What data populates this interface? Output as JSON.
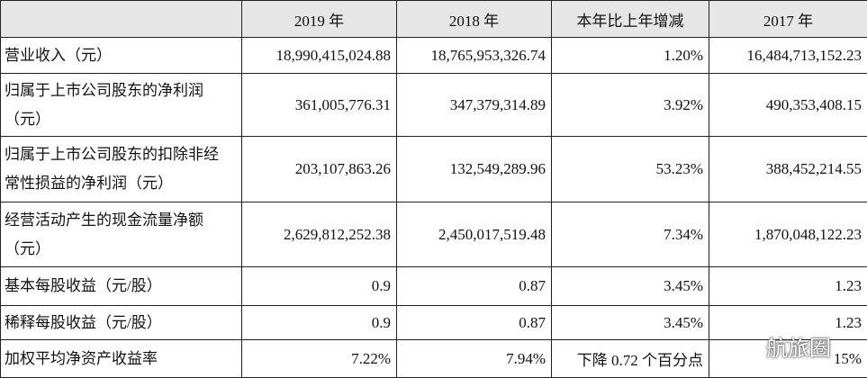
{
  "table": {
    "header": [
      "2019 年",
      "2018 年",
      "本年比上年增减",
      "2017 年"
    ],
    "rows": [
      {
        "label": [
          "营业收入（元）"
        ],
        "cells": [
          "18,990,415,024.88",
          "18,765,953,326.74",
          "1.20%",
          "16,484,713,152.23"
        ]
      },
      {
        "label": [
          "归属于上市公司股东的净利润",
          "（元）"
        ],
        "cells": [
          "361,005,776.31",
          "347,379,314.89",
          "3.92%",
          "490,353,408.15"
        ]
      },
      {
        "label": [
          "归属于上市公司股东的扣除非经",
          "常性损益的净利润（元）"
        ],
        "cells": [
          "203,107,863.26",
          "132,549,289.96",
          "53.23%",
          "388,452,214.55"
        ]
      },
      {
        "label": [
          "经营活动产生的现金流量净额",
          "（元）"
        ],
        "cells": [
          "2,629,812,252.38",
          "2,450,017,519.48",
          "7.34%",
          "1,870,048,122.23"
        ]
      },
      {
        "label": [
          "基本每股收益（元/股）"
        ],
        "cells": [
          "0.9",
          "0.87",
          "3.45%",
          "1.23"
        ]
      },
      {
        "label": [
          "稀释每股收益（元/股）"
        ],
        "cells": [
          "0.9",
          "0.87",
          "3.45%",
          "1.23"
        ]
      },
      {
        "label": [
          "加权平均净资产收益率"
        ],
        "cells": [
          "7.22%",
          "7.94%",
          "下降 0.72 个百分点",
          "15%"
        ]
      }
    ]
  },
  "watermark": "航旅圈"
}
